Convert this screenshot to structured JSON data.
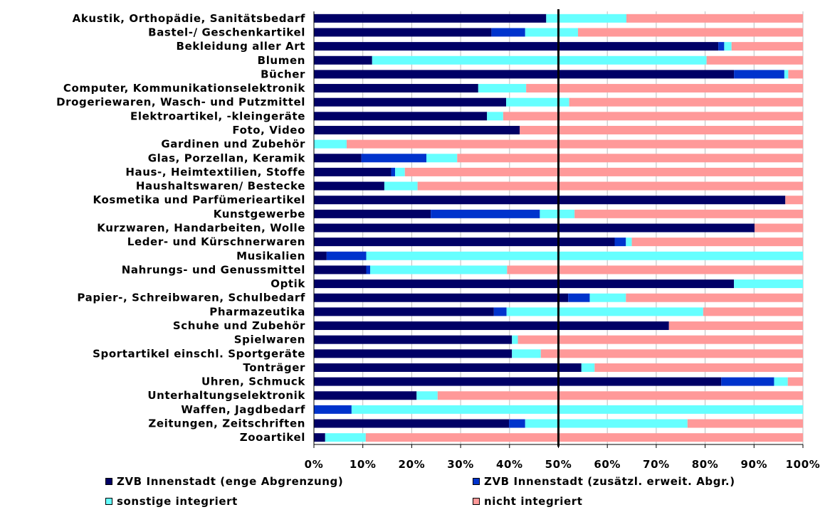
{
  "chart_data": {
    "type": "bar",
    "orientation": "horizontal",
    "stacked": "percent",
    "categories": [
      "Akustik, Orthopädie, Sanitätsbedarf",
      "Bastel-/ Geschenkartikel",
      "Bekleidung aller Art",
      "Blumen",
      "Bücher",
      "Computer, Kommunikationselektronik",
      "Drogeriewaren, Wasch- und Putzmittel",
      "Elektroartikel, -kleingeräte",
      "Foto, Video",
      "Gardinen und Zubehör",
      "Glas, Porzellan, Keramik",
      "Haus-, Heimtextilien, Stoffe",
      "Haushaltswaren/ Bestecke",
      "Kosmetika und Parfümerieartikel",
      "Kunstgewerbe",
      "Kurzwaren, Handarbeiten, Wolle",
      "Leder- und Kürschnerwaren",
      "Musikalien",
      "Nahrungs- und Genussmittel",
      "Optik",
      "Papier-, Schreibwaren, Schulbedarf",
      "Pharmazeutika",
      "Schuhe und Zubehör",
      "Spielwaren",
      "Sportartikel einschl. Sportgeräte",
      "Tonträger",
      "Uhren, Schmuck",
      "Unterhaltungselektronik",
      "Waffen, Jagdbedarf",
      "Zeitungen, Zeitschriften",
      "Zooartikel"
    ],
    "series": [
      {
        "name": "ZVB Innenstadt (enge Abgrenzung)",
        "color": "#000066",
        "values": [
          47.5,
          36.3,
          82.7,
          11.9,
          85.9,
          33.6,
          39.3,
          35.4,
          42.1,
          0,
          9.7,
          15.8,
          14.4,
          96.4,
          23.9,
          90.1,
          61.5,
          2.6,
          10.7,
          85.9,
          52.0,
          36.8,
          72.6,
          40.5,
          40.5,
          54.7,
          83.3,
          21.0,
          0,
          39.9,
          2.3
        ]
      },
      {
        "name": "ZVB Innenstadt (zusätzl. erweit. Abgr.)",
        "color": "#0033cc",
        "values": [
          0,
          6.9,
          1.2,
          0,
          10.3,
          0,
          0,
          0,
          0,
          0,
          13.3,
          0.8,
          0,
          0,
          22.3,
          0,
          2.3,
          8.1,
          0.8,
          0,
          4.4,
          2.6,
          0,
          0,
          0,
          0,
          10.8,
          0,
          7.7,
          3.3,
          0
        ]
      },
      {
        "name": "sonstige integriert",
        "color": "#66ffff",
        "values": [
          16.4,
          10.8,
          1.5,
          68.4,
          0.8,
          9.8,
          12.9,
          3.3,
          0,
          6.7,
          6.3,
          2.0,
          6.8,
          0,
          7.1,
          0,
          1.2,
          89.3,
          28.0,
          14.1,
          7.4,
          40.2,
          0,
          1.2,
          5.9,
          2.7,
          2.8,
          4.3,
          92.3,
          33.2,
          8.3
        ]
      },
      {
        "name": "nicht integriert",
        "color": "#ff9999",
        "values": [
          36.1,
          46.0,
          14.6,
          19.7,
          3.0,
          56.6,
          47.8,
          61.3,
          57.9,
          93.3,
          70.7,
          81.4,
          78.8,
          3.6,
          46.7,
          9.9,
          35.0,
          0,
          60.5,
          0,
          36.2,
          20.4,
          27.4,
          58.3,
          53.6,
          42.6,
          3.1,
          74.7,
          0,
          23.6,
          89.4
        ]
      }
    ],
    "x_ticks": [
      "0%",
      "10%",
      "20%",
      "30%",
      "40%",
      "50%",
      "60%",
      "70%",
      "80%",
      "90%",
      "100%"
    ],
    "xlim": [
      0,
      100
    ],
    "reference_line": 50,
    "grid": true,
    "legend_position": "bottom",
    "title": "",
    "xlabel": "",
    "ylabel": ""
  }
}
